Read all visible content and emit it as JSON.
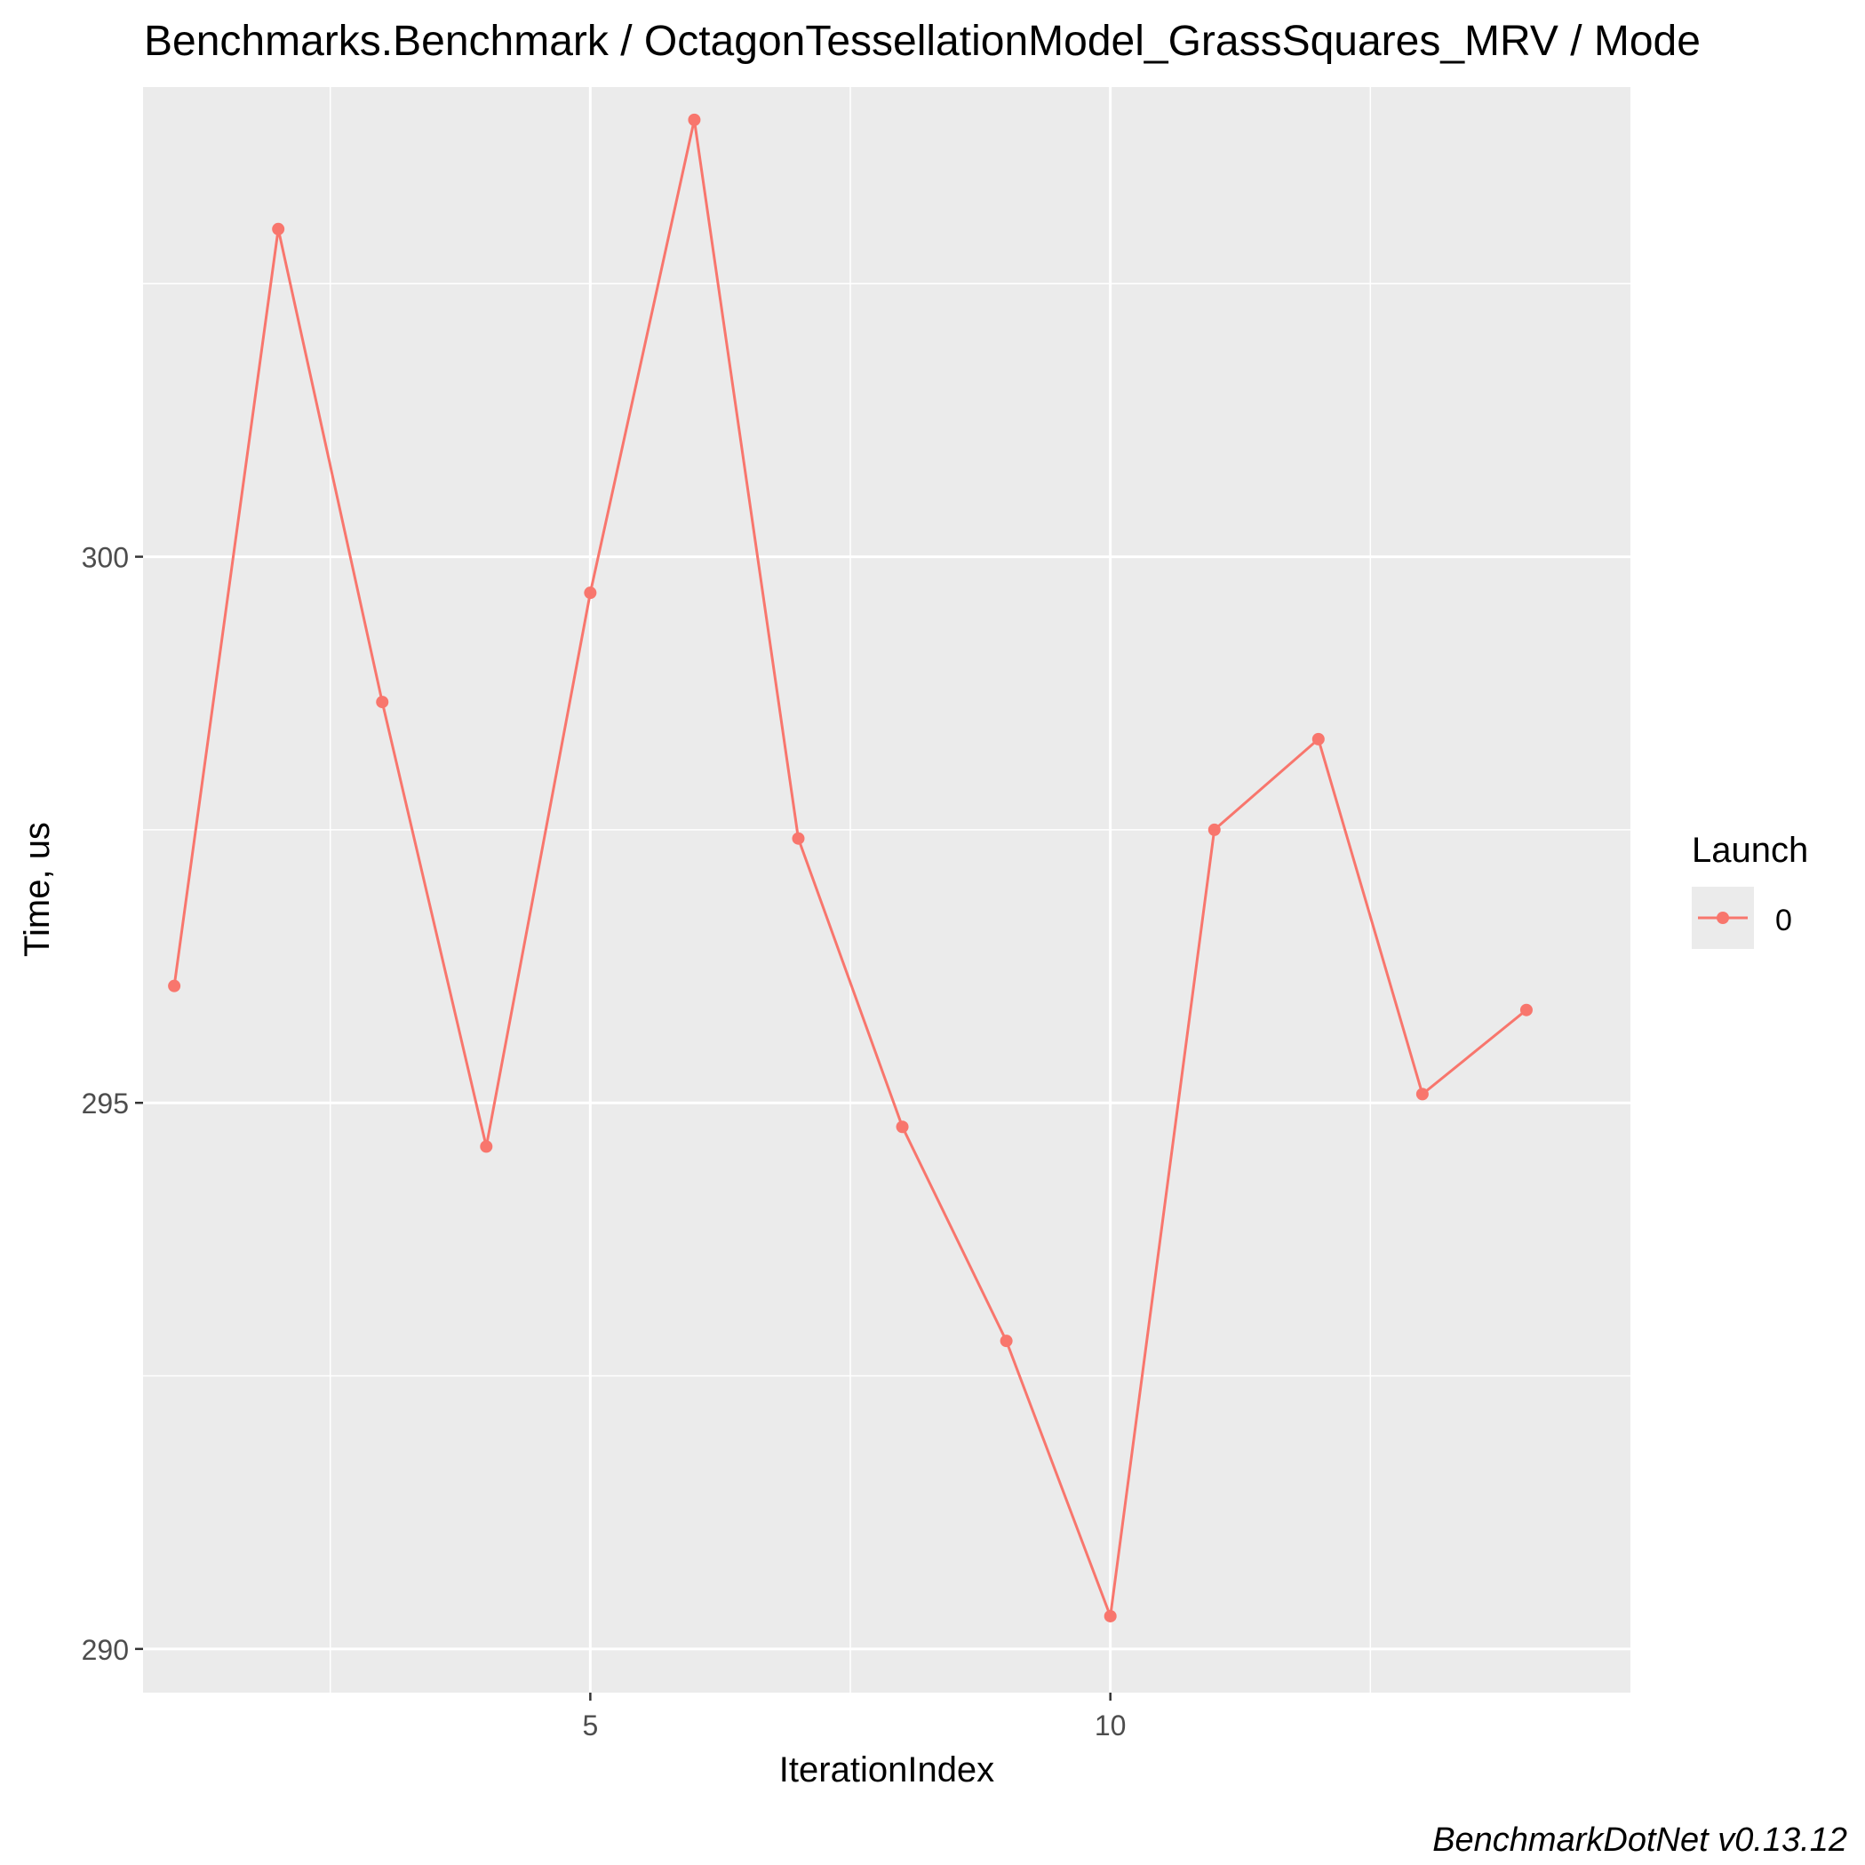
{
  "chart_data": {
    "type": "line",
    "title": "Benchmarks.Benchmark / OctagonTessellationModel_GrassSquares_MRV / Mode",
    "xlabel": "IterationIndex",
    "ylabel": "Time, us",
    "xlim": [
      0.7,
      15.0
    ],
    "ylim": [
      289.6,
      304.3
    ],
    "x_ticks": [
      5,
      10
    ],
    "x_tick_labels": [
      "5",
      "10"
    ],
    "y_ticks": [
      290,
      295,
      300
    ],
    "y_tick_labels": [
      "290",
      "295",
      "300"
    ],
    "grid": true,
    "legend": {
      "title": "Launch",
      "position": "right"
    },
    "series": [
      {
        "name": "0",
        "color": "#f8766d",
        "x": [
          1,
          2,
          3,
          4,
          5,
          6,
          7,
          8,
          9,
          10,
          11,
          12,
          13,
          14
        ],
        "values": [
          296.07,
          303.0,
          298.67,
          294.6,
          299.67,
          304.0,
          297.42,
          294.78,
          292.82,
          290.3,
          297.5,
          298.33,
          295.08,
          295.85
        ]
      }
    ],
    "caption": "BenchmarkDotNet v0.13.12"
  }
}
